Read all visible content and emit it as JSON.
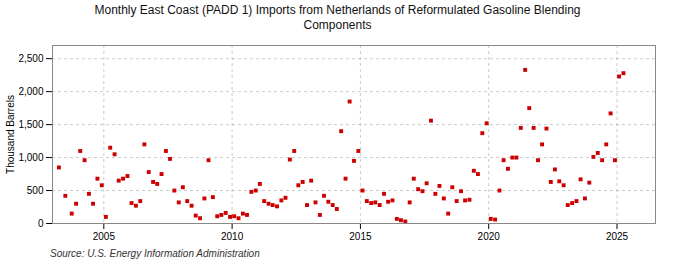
{
  "chart_data": {
    "type": "scatter",
    "title": "Monthly East Coast (PADD 1) Imports from Netherlands of Reformulated Gasoline Blending\nComponents",
    "ylabel": "Thousand Barrels",
    "source": "Source: U.S. Energy Information Administration",
    "color": "#cc0000",
    "marker": "square",
    "grid": true,
    "xlim": [
      2003.0,
      2026.5
    ],
    "ylim": [
      0,
      2700
    ],
    "xticks": [
      2005,
      2010,
      2015,
      2020,
      2025
    ],
    "yticks": [
      0,
      500,
      {
        "value": 1000,
        "label": "1,000"
      },
      {
        "value": 1500,
        "label": "1,500"
      },
      {
        "value": 2000,
        "label": "2,000"
      },
      {
        "value": 2500,
        "label": "2,500"
      }
    ],
    "x": [
      2003.25,
      2003.5,
      2003.75,
      2003.92,
      2004.08,
      2004.25,
      2004.42,
      2004.58,
      2004.75,
      2004.92,
      2005.08,
      2005.25,
      2005.42,
      2005.58,
      2005.75,
      2005.92,
      2006.08,
      2006.25,
      2006.42,
      2006.58,
      2006.75,
      2006.92,
      2007.08,
      2007.25,
      2007.42,
      2007.58,
      2007.75,
      2007.92,
      2008.08,
      2008.25,
      2008.42,
      2008.58,
      2008.75,
      2008.92,
      2009.08,
      2009.25,
      2009.42,
      2009.58,
      2009.75,
      2009.92,
      2010.08,
      2010.25,
      2010.42,
      2010.58,
      2010.75,
      2010.92,
      2011.08,
      2011.25,
      2011.42,
      2011.58,
      2011.75,
      2011.92,
      2012.08,
      2012.25,
      2012.42,
      2012.58,
      2012.75,
      2012.92,
      2013.08,
      2013.25,
      2013.42,
      2013.58,
      2013.75,
      2013.92,
      2014.08,
      2014.25,
      2014.42,
      2014.58,
      2014.75,
      2014.92,
      2015.08,
      2015.25,
      2015.42,
      2015.58,
      2015.75,
      2015.92,
      2016.08,
      2016.25,
      2016.42,
      2016.58,
      2016.75,
      2016.92,
      2017.08,
      2017.25,
      2017.42,
      2017.58,
      2017.75,
      2017.92,
      2018.08,
      2018.25,
      2018.42,
      2018.58,
      2018.75,
      2018.92,
      2019.08,
      2019.25,
      2019.42,
      2019.58,
      2019.75,
      2019.92,
      2020.08,
      2020.25,
      2020.42,
      2020.58,
      2020.75,
      2020.92,
      2021.08,
      2021.25,
      2021.42,
      2021.58,
      2021.75,
      2021.92,
      2022.08,
      2022.25,
      2022.42,
      2022.58,
      2022.75,
      2022.92,
      2023.08,
      2023.25,
      2023.42,
      2023.58,
      2023.75,
      2023.92,
      2024.08,
      2024.25,
      2024.42,
      2024.58,
      2024.75,
      2024.92,
      2025.08,
      2025.25
    ],
    "values": [
      850,
      420,
      150,
      300,
      1100,
      960,
      450,
      300,
      680,
      580,
      100,
      1150,
      1050,
      650,
      680,
      720,
      310,
      270,
      340,
      1200,
      780,
      630,
      600,
      750,
      1100,
      980,
      500,
      320,
      550,
      340,
      270,
      120,
      80,
      380,
      960,
      400,
      110,
      130,
      160,
      100,
      110,
      80,
      150,
      130,
      480,
      500,
      600,
      340,
      300,
      280,
      260,
      350,
      390,
      970,
      1100,
      580,
      630,
      280,
      650,
      320,
      130,
      420,
      330,
      280,
      220,
      1400,
      680,
      1850,
      950,
      1100,
      500,
      340,
      310,
      320,
      280,
      450,
      330,
      350,
      70,
      50,
      30,
      320,
      680,
      520,
      490,
      610,
      1560,
      450,
      570,
      380,
      150,
      550,
      340,
      490,
      350,
      360,
      800,
      750,
      1370,
      1520,
      70,
      60,
      500,
      960,
      830,
      1000,
      1000,
      1450,
      2330,
      1750,
      1450,
      960,
      1200,
      1440,
      630,
      820,
      640,
      580,
      280,
      310,
      340,
      670,
      380,
      620,
      1010,
      1070,
      960,
      1200,
      1670,
      960,
      2230,
      2280
    ]
  }
}
